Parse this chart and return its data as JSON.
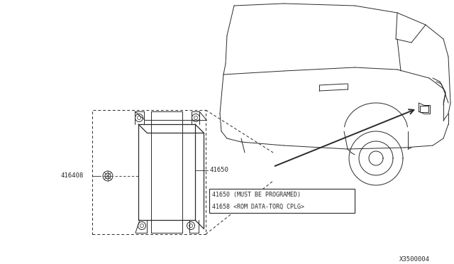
{
  "bg_color": "#ffffff",
  "line_color": "#2a2a2a",
  "fig_width": 6.4,
  "fig_height": 3.72,
  "dpi": 100,
  "diagram_ref": "X3500004",
  "note_line1": "41650 (MUST BE PROGRAMED)",
  "note_line2": "41658 <ROM DATA-TORQ CPLG>",
  "label_41650": "41650",
  "label_416408": "416408"
}
